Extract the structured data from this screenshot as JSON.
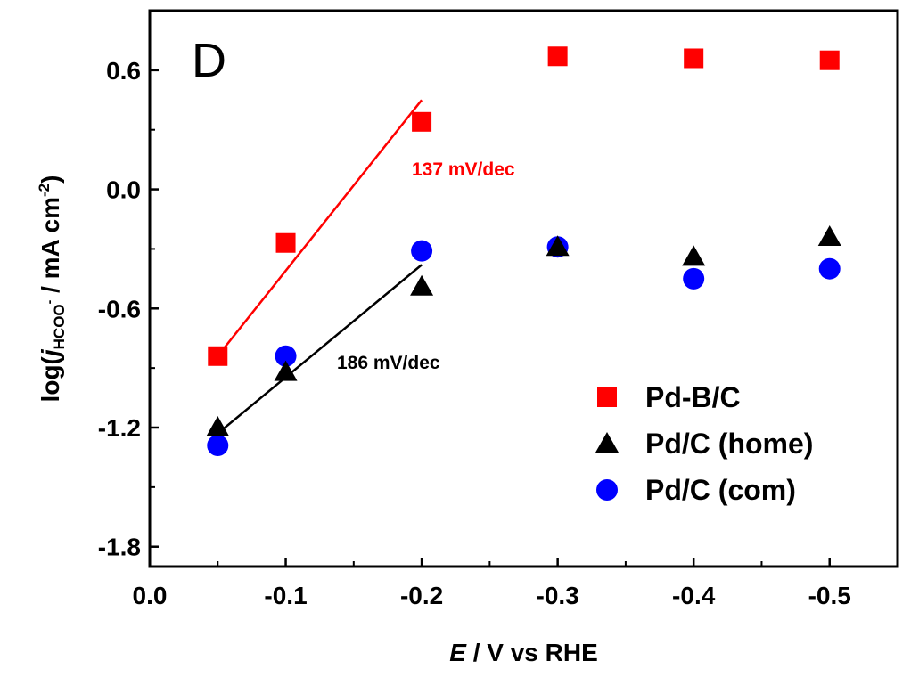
{
  "chart_data": {
    "type": "scatter",
    "panel_label": "D",
    "xlabel_italic": "E",
    "xlabel_rest": " / V vs RHE",
    "ylabel_prefix": "log(",
    "ylabel_j": "j",
    "ylabel_sub": "HCOO",
    "ylabel_sub_sup": "-",
    "ylabel_mid": " / mA cm",
    "ylabel_sup": "-2",
    "ylabel_suffix": ")",
    "xlim": [
      0.0,
      -0.55
    ],
    "ylim": [
      -1.9,
      0.9
    ],
    "x_ticks": [
      0.0,
      -0.1,
      -0.2,
      -0.3,
      -0.4,
      -0.5
    ],
    "x_tick_labels": [
      "0.0",
      "-0.1",
      "-0.2",
      "-0.3",
      "-0.4",
      "-0.5"
    ],
    "y_ticks": [
      0.6,
      0.0,
      -0.6,
      -1.2,
      -1.8
    ],
    "y_tick_labels": [
      "0.6",
      "0.0",
      "-0.6",
      "-1.2",
      "-1.8"
    ],
    "grid": false,
    "legend_position": "bottom-right",
    "series": [
      {
        "name": "Pd-B/C",
        "marker": "square",
        "color": "#ff0000",
        "x": [
          -0.05,
          -0.1,
          -0.2,
          -0.3,
          -0.4,
          -0.5
        ],
        "y": [
          -0.84,
          -0.27,
          0.34,
          0.67,
          0.66,
          0.65
        ]
      },
      {
        "name": "Pd/C (home)",
        "marker": "triangle",
        "color": "#000000",
        "x": [
          -0.05,
          -0.1,
          -0.2,
          -0.3,
          -0.4,
          -0.5
        ],
        "y": [
          -1.2,
          -0.92,
          -0.49,
          -0.29,
          -0.34,
          -0.24
        ]
      },
      {
        "name": "Pd/C (com)",
        "marker": "circle",
        "color": "#0000ff",
        "x": [
          -0.05,
          -0.1,
          -0.2,
          -0.3,
          -0.4,
          -0.5
        ],
        "y": [
          -1.29,
          -0.84,
          -0.31,
          -0.29,
          -0.45,
          -0.4
        ]
      }
    ],
    "fits": [
      {
        "label": "137 mV/dec",
        "color": "#ff0000",
        "x": [
          -0.05,
          -0.2
        ],
        "y": [
          -0.84,
          0.45
        ]
      },
      {
        "label": "186 mV/dec",
        "color": "#000000",
        "x": [
          -0.05,
          -0.2
        ],
        "y": [
          -1.23,
          -0.38
        ]
      }
    ]
  }
}
